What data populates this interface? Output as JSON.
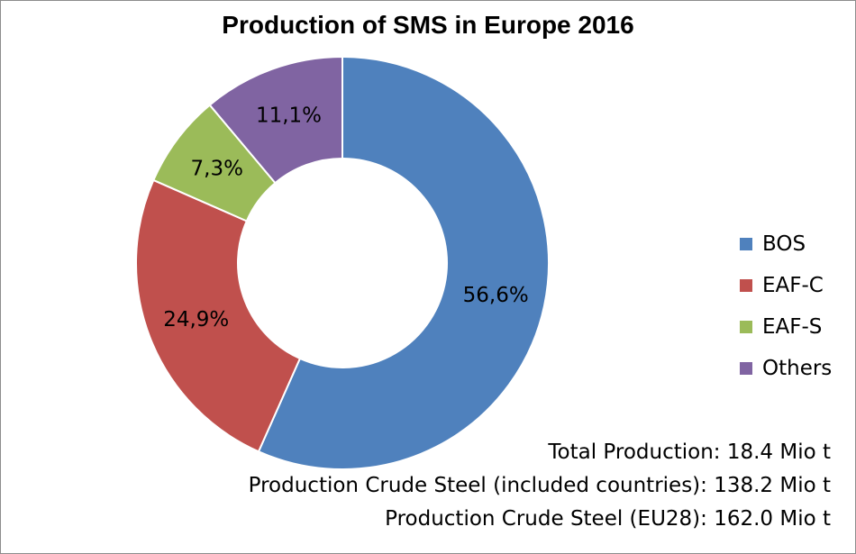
{
  "chart_data": {
    "type": "pie",
    "variant": "donut",
    "title": "Production of SMS in Europe 2016",
    "slices": [
      {
        "label": "BOS",
        "value": 56.6,
        "display": "56,6%",
        "color": "#4f81bd"
      },
      {
        "label": "EAF-C",
        "value": 24.9,
        "display": "24,9%",
        "color": "#c0504d"
      },
      {
        "label": "EAF-S",
        "value": 7.3,
        "display": "7,3%",
        "color": "#9bbb59"
      },
      {
        "label": "Others",
        "value": 11.1,
        "display": "11,1%",
        "color": "#8064a2"
      }
    ],
    "legend_position": "right",
    "start_angle_deg": 0,
    "direction": "clockwise",
    "annotations": [
      "Total Production: 18.4 Mio t",
      "Production Crude Steel (included countries): 138.2 Mio t",
      "Production Crude Steel (EU28): 162.0 Mio t"
    ]
  }
}
